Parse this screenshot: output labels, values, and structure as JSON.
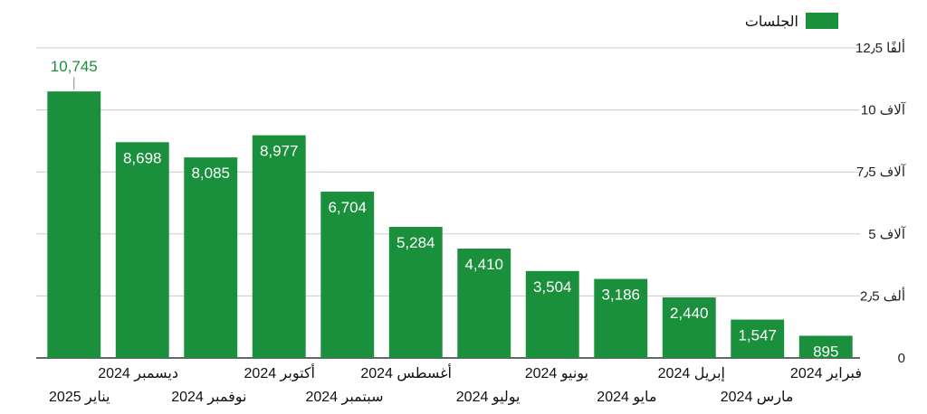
{
  "chart_data": {
    "type": "bar",
    "orientation": "vertical",
    "x_axis_position": "right-to-left",
    "categories": [
      "فبراير 2024",
      "مارس 2024",
      "إبريل 2024",
      "مايو 2024",
      "يونيو 2024",
      "يوليو 2024",
      "أغسطس 2024",
      "سبتمبر 2024",
      "أكتوبر 2024",
      "نوفمبر 2024",
      "ديسمبر 2024",
      "يناير 2025"
    ],
    "series": [
      {
        "name": "الجلسات",
        "values": [
          895,
          1547,
          2440,
          3186,
          3504,
          4410,
          5284,
          6704,
          8977,
          8085,
          8698,
          10745
        ],
        "labels": [
          "895",
          "1,547",
          "2,440",
          "3,186",
          "3,504",
          "4,410",
          "5,284",
          "6,704",
          "8,977",
          "8,085",
          "8,698",
          "10,745"
        ]
      }
    ],
    "ylim": [
      0,
      12500
    ],
    "yticks": [
      0,
      2500,
      5000,
      7500,
      10000,
      12500
    ],
    "ytick_labels": [
      "0",
      "2٫5 ألف",
      "5 آلاف",
      "7٫5 آلاف",
      "10 آلاف",
      "12٫5 ألفًا"
    ],
    "y_axis_side": "right",
    "grid": true,
    "legend_position": "top-right",
    "bar_color": "#1a8f3c",
    "label_color": "#1a8f3c"
  }
}
